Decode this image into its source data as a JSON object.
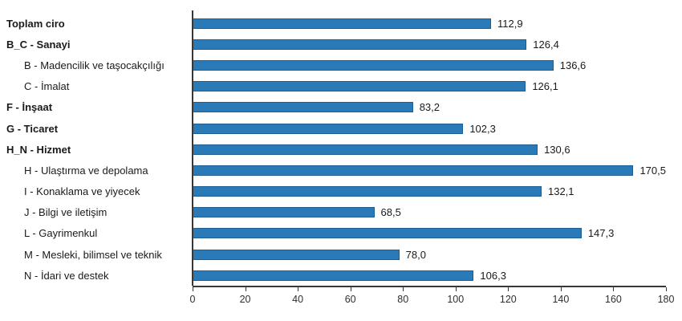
{
  "chart_data": {
    "type": "bar",
    "orientation": "horizontal",
    "title": "",
    "xlabel": "",
    "ylabel": "",
    "xlim": [
      0,
      180
    ],
    "x_ticks": [
      0,
      20,
      40,
      60,
      80,
      100,
      120,
      140,
      160,
      180
    ],
    "grid": false,
    "legend": false,
    "bar_color": "#2b7ab8",
    "bar_border_color": "#1c5e93",
    "axis_color": "#383838",
    "decimal_separator": ",",
    "rows": [
      {
        "label": "Toplam ciro",
        "value": 112.9,
        "display": "112,9",
        "bold": true,
        "indent": false
      },
      {
        "label": "B_C - Sanayi",
        "value": 126.4,
        "display": "126,4",
        "bold": true,
        "indent": false
      },
      {
        "label": "B - Madencilik ve taşocakçılığı",
        "value": 136.6,
        "display": "136,6",
        "bold": false,
        "indent": true
      },
      {
        "label": "C - İmalat",
        "value": 126.1,
        "display": "126,1",
        "bold": false,
        "indent": true
      },
      {
        "label": "F - İnşaat",
        "value": 83.2,
        "display": "83,2",
        "bold": true,
        "indent": false
      },
      {
        "label": "G - Ticaret",
        "value": 102.3,
        "display": "102,3",
        "bold": true,
        "indent": false
      },
      {
        "label": "H_N - Hizmet",
        "value": 130.6,
        "display": "130,6",
        "bold": true,
        "indent": false
      },
      {
        "label": "H - Ulaştırma ve depolama",
        "value": 170.5,
        "display": "170,5",
        "bold": false,
        "indent": true
      },
      {
        "label": "I - Konaklama ve yiyecek",
        "value": 132.1,
        "display": "132,1",
        "bold": false,
        "indent": true
      },
      {
        "label": "J - Bilgi ve iletişim",
        "value": 68.5,
        "display": "68,5",
        "bold": false,
        "indent": true
      },
      {
        "label": "L - Gayrimenkul",
        "value": 147.3,
        "display": "147,3",
        "bold": false,
        "indent": true
      },
      {
        "label": "M - Mesleki, bilimsel ve teknik",
        "value": 78.0,
        "display": "78,0",
        "bold": false,
        "indent": true
      },
      {
        "label": "N - İdari ve destek",
        "value": 106.3,
        "display": "106,3",
        "bold": false,
        "indent": true
      }
    ]
  }
}
